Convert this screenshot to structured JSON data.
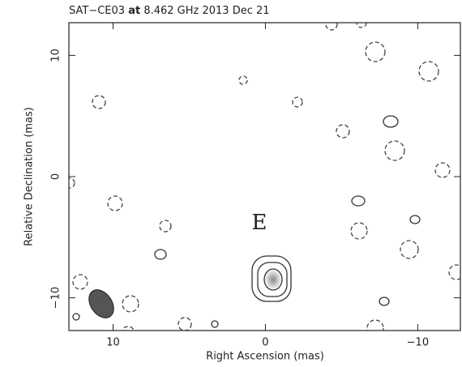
{
  "chart_data": {
    "type": "contour",
    "title": {
      "source": "SAT−CE03",
      "keyword": "at",
      "detail": "8.462 GHz 2013 Dec 21"
    },
    "x_label": "Right Ascension  (mas)",
    "y_label": "Relative Declination  (mas)",
    "annotation": "E",
    "annotation_color": "#e0201c",
    "xlim": [
      12.9,
      -12.8
    ],
    "ylim": [
      -12.7,
      12.7
    ],
    "xticks": [
      10,
      0,
      {
        "value": -10,
        "label": "−10"
      }
    ],
    "yticks": [
      {
        "value": -10,
        "label": "−10"
      },
      0,
      10
    ]
  }
}
